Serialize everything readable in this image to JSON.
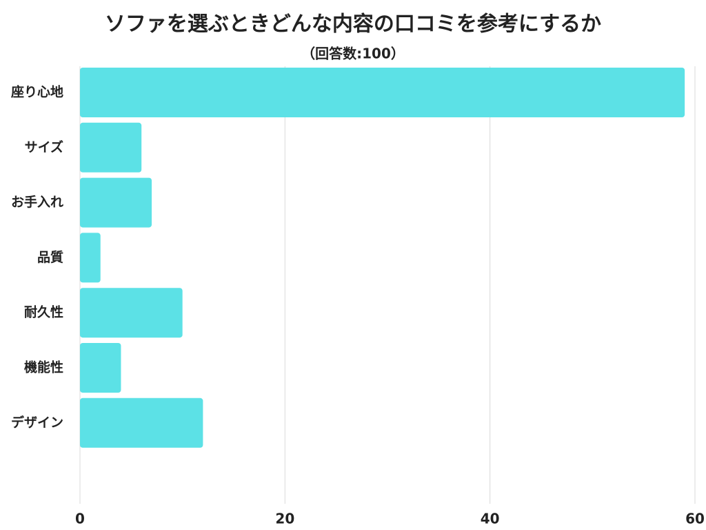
{
  "chart_data": {
    "type": "bar",
    "orientation": "horizontal",
    "title": "ソファを選ぶときどんな内容の口コミを参考にするか",
    "subtitle": "（回答数:100）",
    "categories": [
      "座り心地",
      "サイズ",
      "お手入れ",
      "品質",
      "耐久性",
      "機能性",
      "デザイン"
    ],
    "values": [
      59,
      6,
      7,
      2,
      10,
      4,
      12
    ],
    "color": "#5ce1e6",
    "xlim": [
      0,
      60
    ],
    "xticks": [
      0,
      20,
      40,
      60
    ],
    "grid": true
  }
}
